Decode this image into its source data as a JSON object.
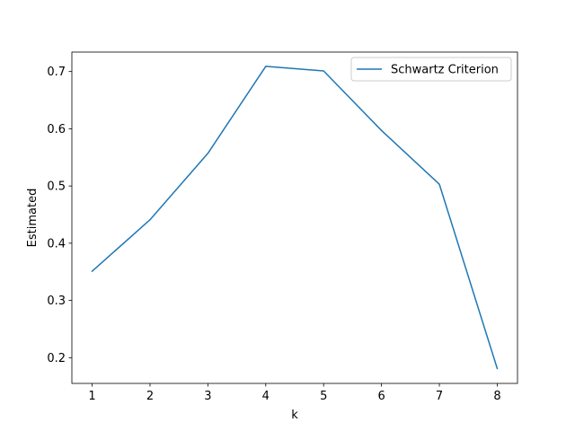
{
  "chart_data": {
    "type": "line",
    "title": "",
    "xlabel": "k",
    "ylabel": "Estimated",
    "x": [
      1,
      2,
      3,
      4,
      5,
      6,
      7,
      8
    ],
    "series": [
      {
        "name": "Schwartz Criterion",
        "values": [
          0.351,
          0.441,
          0.557,
          0.709,
          0.701,
          0.597,
          0.503,
          0.181
        ],
        "color": "#1f77b4"
      }
    ],
    "xlim": [
      0.65,
      8.35
    ],
    "ylim": [
      0.155,
      0.734
    ],
    "xticks": [
      "1",
      "2",
      "3",
      "4",
      "5",
      "6",
      "7",
      "8"
    ],
    "yticks": [
      "0.2",
      "0.3",
      "0.4",
      "0.5",
      "0.6",
      "0.7"
    ],
    "grid": false,
    "legend_position": "upper right"
  }
}
